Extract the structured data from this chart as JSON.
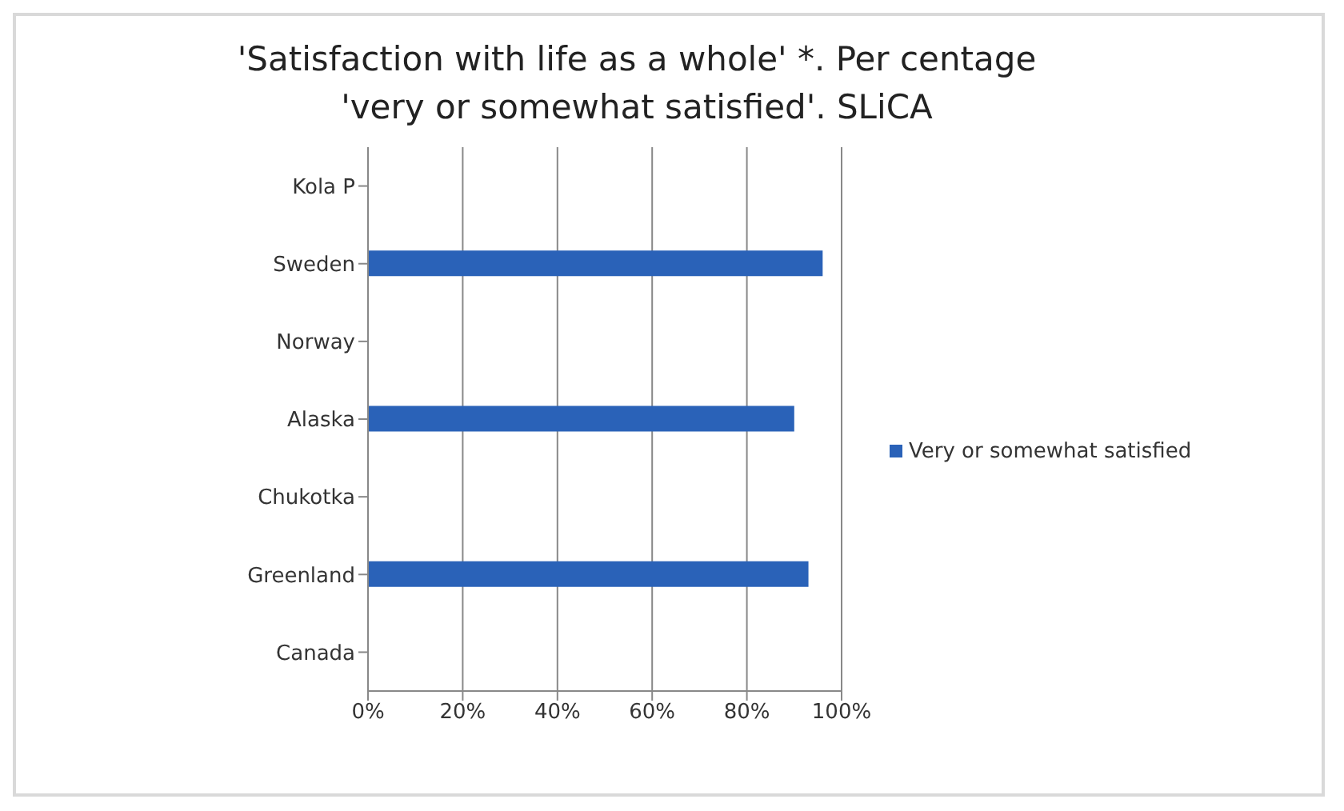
{
  "chart_data": {
    "type": "bar",
    "orientation": "horizontal",
    "title": "'Satisfaction with life as a whole' *. Per centage\n'very or somewhat satisfied'. SLiCA",
    "categories": [
      "Kola P",
      "Sweden",
      "Norway",
      "Alaska",
      "Chukotka",
      "Greenland",
      "Canada"
    ],
    "series": [
      {
        "name": "Very or somewhat satisfied",
        "color": "#2a62b8",
        "values": [
          null,
          96,
          null,
          90,
          null,
          93,
          null
        ]
      }
    ],
    "xlim": [
      0,
      100
    ],
    "xticks": [
      {
        "value": 0,
        "label": "0%"
      },
      {
        "value": 20,
        "label": "20%"
      },
      {
        "value": 40,
        "label": "40%"
      },
      {
        "value": 60,
        "label": "60%"
      },
      {
        "value": 80,
        "label": "80%"
      },
      {
        "value": 100,
        "label": "100%"
      }
    ],
    "grid": "x",
    "legend": "right"
  }
}
